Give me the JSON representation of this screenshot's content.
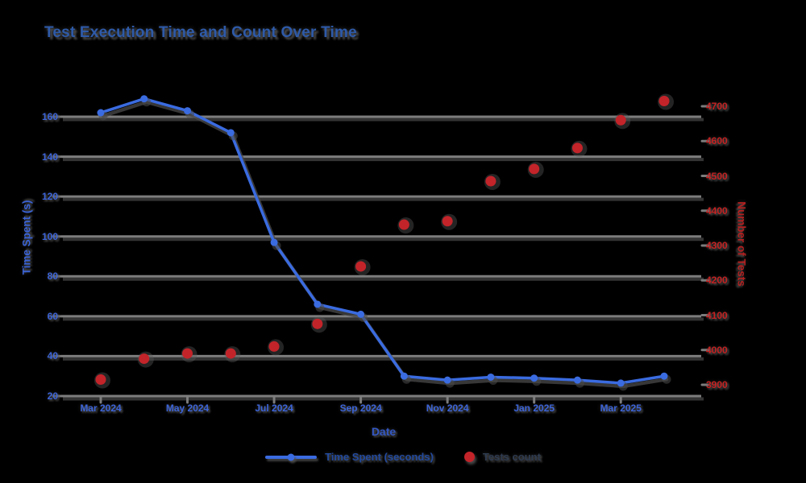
{
  "title": "Test Execution Time and Count Over Time",
  "chart_data": {
    "type": "line",
    "title": "Test Execution Time and Count Over Time",
    "xlabel": "Date",
    "ylabel_left": "Time Spent (s)",
    "ylabel_right": "Number of Tests",
    "x": [
      "Mar 2024",
      "Apr 2024",
      "May 2024",
      "Jun 2024",
      "Jul 2024",
      "Aug 2024",
      "Sep 2024",
      "Oct 2024",
      "Nov 2024",
      "Dec 2024",
      "Jan 2025",
      "Feb 2025",
      "Mar 2025",
      "Apr 2025"
    ],
    "xtick_labels": [
      "Mar 2024",
      "May 2024",
      "Jul 2024",
      "Sep 2024",
      "Nov 2024",
      "Jan 2025",
      "Mar 2025"
    ],
    "xtick_indices": [
      0,
      2,
      4,
      6,
      8,
      10,
      12
    ],
    "yticks_left": [
      160,
      140,
      120,
      100,
      80,
      60,
      40,
      20
    ],
    "yticks_right": [
      4700,
      4600,
      4500,
      4400,
      4300,
      4200,
      4100,
      4000,
      3900
    ],
    "ylim_left": [
      20,
      160
    ],
    "ylim_right": [
      3900,
      4700
    ],
    "grid": "horizontal-only",
    "legend_position": "bottom-center",
    "series": [
      {
        "name": "Time Spent (seconds)",
        "axis": "left",
        "style": "line+markers",
        "color": "#3a6be0",
        "values": [
          162,
          169,
          163,
          152,
          97,
          66,
          61,
          30,
          28,
          29.5,
          29,
          28,
          26.5,
          30
        ]
      },
      {
        "name": "Tests count",
        "axis": "right",
        "style": "scatter",
        "color": "#c2242a",
        "values": [
          3915,
          3975,
          3990,
          3990,
          4010,
          4075,
          4240,
          4360,
          4370,
          4485,
          4520,
          4580,
          4660,
          4715
        ]
      }
    ],
    "colors": {
      "title": "#2e5aa8",
      "left_axis": "#3c64d8",
      "right_axis": "#c52222",
      "grid": "#7d7d7d",
      "grid_shadow": "#4a4a4a",
      "background": "#000000"
    }
  },
  "legend": {
    "items": [
      {
        "label": "Time Spent (seconds)",
        "marker": "line"
      },
      {
        "label": "Tests count",
        "marker": "dot"
      }
    ]
  }
}
